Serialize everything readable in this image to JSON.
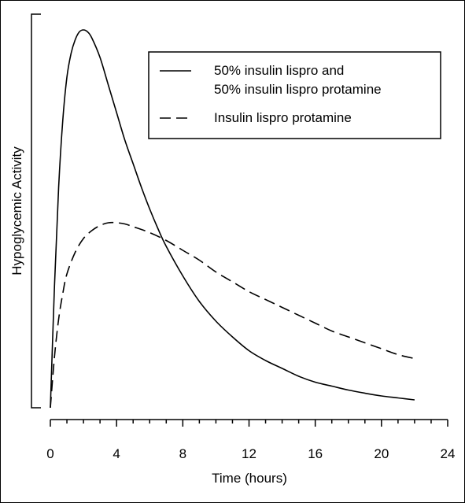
{
  "chart_data": {
    "type": "line",
    "title": "",
    "xlabel": "Time (hours)",
    "ylabel": "Hypoglycemic Activity",
    "xlim": [
      0,
      24
    ],
    "ylim": [
      0,
      1
    ],
    "xticks": [
      "0",
      "4",
      "8",
      "12",
      "16",
      "20",
      "24"
    ],
    "x_minor_step": 1,
    "grid": false,
    "legend_position": "top-right",
    "series": [
      {
        "name": "50% insulin lispro and 50% insulin lispro protamine",
        "label_lines": [
          "50% insulin lispro and",
          "50% insulin lispro protamine"
        ],
        "style": "solid",
        "x": [
          0,
          0.25,
          0.5,
          0.75,
          1,
          1.25,
          1.5,
          1.75,
          2,
          2.25,
          2.5,
          3,
          3.5,
          4,
          4.5,
          5,
          5.5,
          6,
          6.5,
          7,
          8,
          9,
          10,
          11,
          12,
          13,
          14,
          15,
          16,
          17,
          18,
          19,
          20,
          21,
          22
        ],
        "y": [
          0.0,
          0.31,
          0.56,
          0.73,
          0.84,
          0.9,
          0.935,
          0.955,
          0.96,
          0.955,
          0.94,
          0.89,
          0.82,
          0.75,
          0.68,
          0.62,
          0.56,
          0.505,
          0.455,
          0.41,
          0.335,
          0.27,
          0.22,
          0.18,
          0.145,
          0.12,
          0.1,
          0.08,
          0.065,
          0.055,
          0.045,
          0.037,
          0.03,
          0.025,
          0.02
        ]
      },
      {
        "name": "Insulin lispro protamine",
        "label_lines": [
          "Insulin lispro protamine"
        ],
        "style": "dashed",
        "x": [
          0,
          0.25,
          0.5,
          0.75,
          1,
          1.5,
          2,
          2.5,
          3,
          3.5,
          4,
          4.5,
          5,
          6,
          7,
          8,
          9,
          10,
          11,
          12,
          13,
          14,
          15,
          16,
          17,
          18,
          19,
          20,
          21,
          22
        ],
        "y": [
          0.0,
          0.13,
          0.225,
          0.29,
          0.34,
          0.395,
          0.43,
          0.45,
          0.463,
          0.47,
          0.47,
          0.467,
          0.46,
          0.445,
          0.425,
          0.4,
          0.375,
          0.345,
          0.32,
          0.295,
          0.275,
          0.255,
          0.235,
          0.215,
          0.195,
          0.18,
          0.165,
          0.15,
          0.135,
          0.125
        ]
      }
    ]
  }
}
